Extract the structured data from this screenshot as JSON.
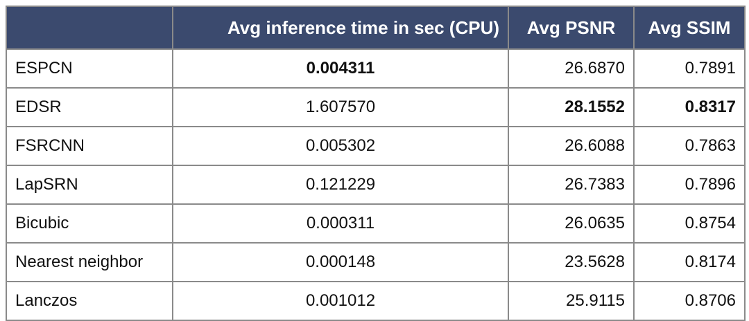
{
  "table": {
    "headers": [
      "",
      "Avg inference time in sec (CPU)",
      "Avg PSNR",
      "Avg SSIM"
    ],
    "rows": [
      {
        "method": "ESPCN",
        "time": "0.004311",
        "psnr": "26.6870",
        "ssim": "0.7891",
        "bold": [
          "time"
        ]
      },
      {
        "method": "EDSR",
        "time": "1.607570",
        "psnr": "28.1552",
        "ssim": "0.8317",
        "bold": [
          "psnr",
          "ssim"
        ]
      },
      {
        "method": "FSRCNN",
        "time": "0.005302",
        "psnr": "26.6088",
        "ssim": "0.7863",
        "bold": []
      },
      {
        "method": "LapSRN",
        "time": "0.121229",
        "psnr": "26.7383",
        "ssim": "0.7896",
        "bold": []
      },
      {
        "method": "Bicubic",
        "time": "0.000311",
        "psnr": "26.0635",
        "ssim": "0.8754",
        "bold": []
      },
      {
        "method": "Nearest neighbor",
        "time": "0.000148",
        "psnr": "23.5628",
        "ssim": "0.8174",
        "bold": []
      },
      {
        "method": "Lanczos",
        "time": "0.001012",
        "psnr": "25.9115",
        "ssim": "0.8706",
        "bold": []
      }
    ]
  },
  "colors": {
    "header_background": "#3b4a6e",
    "header_text": "#ffffff",
    "border": "#8a8a8a"
  }
}
